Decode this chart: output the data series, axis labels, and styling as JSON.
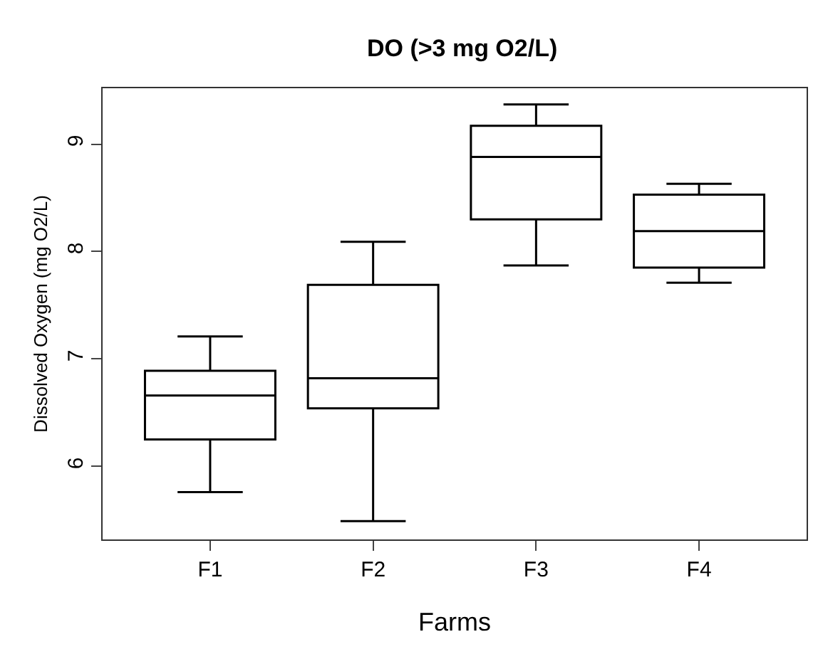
{
  "chart_data": {
    "type": "box",
    "title": "DO (>3 mg O2/L)",
    "xlabel": "Farms",
    "ylabel": "Dissolved Oxygen (mg O2/L)",
    "categories": [
      "F1",
      "F2",
      "F3",
      "F4"
    ],
    "boxes": [
      {
        "low": 5.76,
        "q1": 6.25,
        "median": 6.66,
        "q3": 6.89,
        "high": 7.21
      },
      {
        "low": 5.49,
        "q1": 6.54,
        "median": 6.82,
        "q3": 7.69,
        "high": 8.09
      },
      {
        "low": 7.87,
        "q1": 8.3,
        "median": 8.88,
        "q3": 9.17,
        "high": 9.37
      },
      {
        "low": 7.71,
        "q1": 7.85,
        "median": 8.19,
        "q3": 8.53,
        "high": 8.63
      }
    ],
    "color": "#000000",
    "ylim": [
      5.32,
      9.52
    ],
    "yticks": [
      6,
      7,
      8,
      9
    ]
  }
}
